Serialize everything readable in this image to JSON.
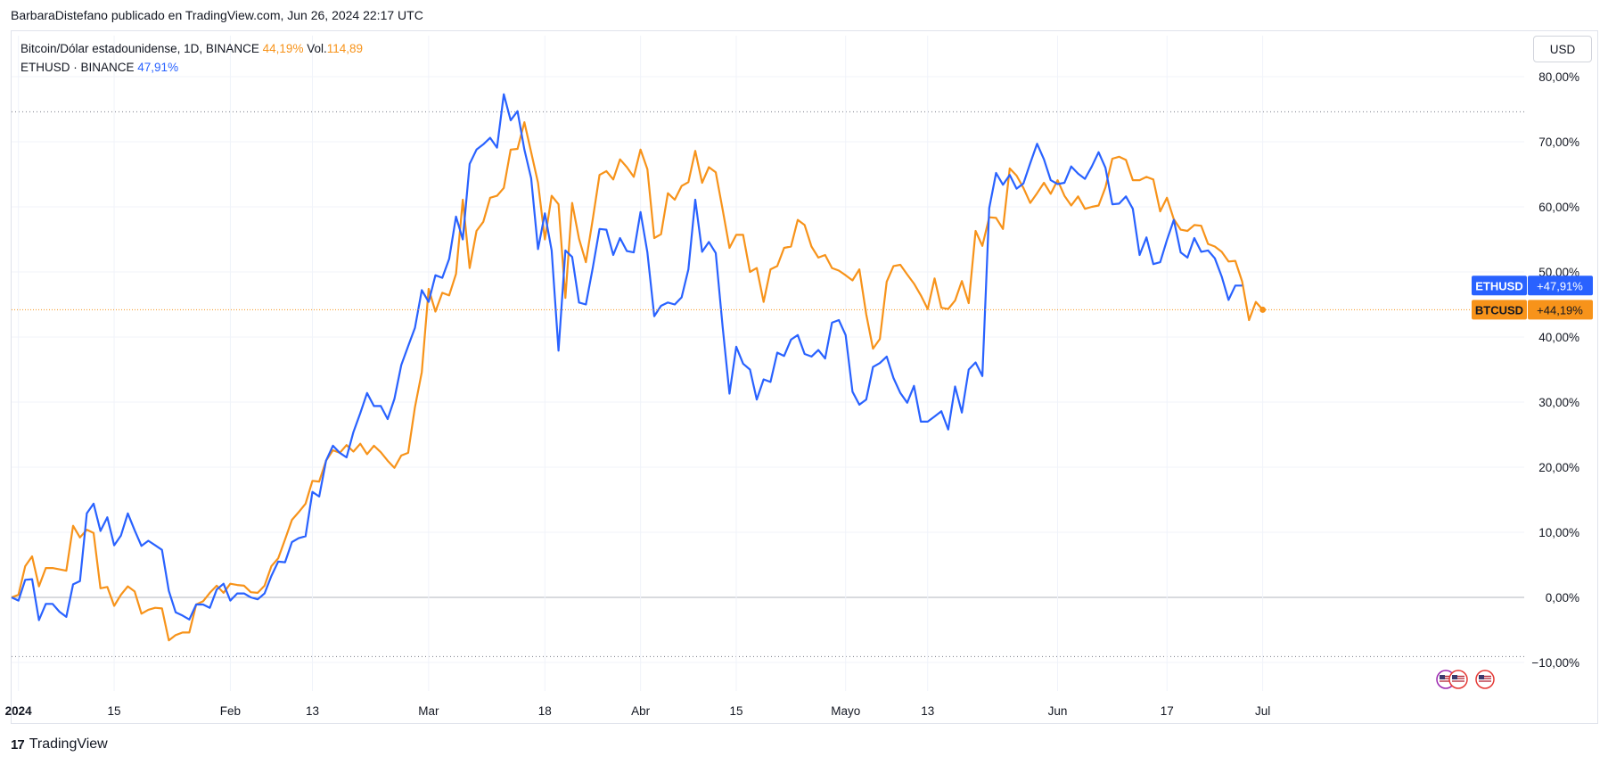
{
  "header": {
    "caption": "BarbaraDistefano publicado en TradingView.com, Jun 26, 2024 22:17 UTC"
  },
  "legend": {
    "row1_name": "Bitcoin/Dólar estadounidense, 1D, BINANCE",
    "row1_change": "44,19%",
    "row1_vol_label": "Vol.",
    "row1_vol_value": "114,89",
    "row2_name": "ETHUSD · BINANCE",
    "row2_change": "47,91%"
  },
  "currency_button": "USD",
  "footer": {
    "brand": "TradingView",
    "logo": "tradingview-logo-icon"
  },
  "colors": {
    "btc": "#f7931a",
    "eth": "#2962ff",
    "grid": "#f0f3fa",
    "zero": "#b2b5be"
  },
  "chart_data": {
    "type": "line",
    "y_unit": "percent",
    "ylim": [
      -12,
      82
    ],
    "y_ticks": [
      80,
      70,
      60,
      50,
      40,
      30,
      20,
      10,
      0,
      -10
    ],
    "y_tick_labels": [
      "80,00%",
      "70,00%",
      "60,00%",
      "50,00%",
      "40,00%",
      "30,00%",
      "20,00%",
      "10,00%",
      "0,00%",
      "−10,00%"
    ],
    "x_range": [
      "2023-12-31",
      "2024-07-06"
    ],
    "x_ticks": [
      {
        "date": "2024-01-01",
        "label": "2024",
        "bold": true
      },
      {
        "date": "2024-01-15",
        "label": "15"
      },
      {
        "date": "2024-02-01",
        "label": "Feb"
      },
      {
        "date": "2024-02-13",
        "label": "13"
      },
      {
        "date": "2024-03-01",
        "label": "Mar"
      },
      {
        "date": "2024-03-18",
        "label": "18"
      },
      {
        "date": "2024-04-01",
        "label": "Abr"
      },
      {
        "date": "2024-04-15",
        "label": "15"
      },
      {
        "date": "2024-05-01",
        "label": "Mayo"
      },
      {
        "date": "2024-05-13",
        "label": "13"
      },
      {
        "date": "2024-06-01",
        "label": "Jun"
      },
      {
        "date": "2024-06-17",
        "label": "17"
      },
      {
        "date": "2024-07-01",
        "label": "Jul"
      }
    ],
    "dashed_lines": [
      74.6,
      -9.1
    ],
    "series": [
      {
        "name": "ETHUSD",
        "badge_label": "ETHUSD",
        "badge_value": "+47,91%",
        "last_value": 47.91,
        "color": "#2962ff",
        "start": "2023-12-31",
        "values": [
          0,
          -0.5,
          2.7,
          2.8,
          -3.5,
          -1,
          -1,
          -2.2,
          -3,
          2,
          2.5,
          12.9,
          14.4,
          10.2,
          12.3,
          8,
          9.5,
          12.9,
          10.3,
          7.9,
          8.7,
          8,
          7.3,
          1,
          -2.3,
          -2.8,
          -3.4,
          -1.1,
          -1.1,
          -1.6,
          1.2,
          2.1,
          -0.5,
          0.6,
          0.6,
          0,
          -0.3,
          0.6,
          3.3,
          5.5,
          5.4,
          8.5,
          9.1,
          9.4,
          16.2,
          15.5,
          21,
          23.3,
          22.2,
          21.5,
          25.4,
          28.3,
          31.4,
          29.4,
          29.4,
          27.4,
          30.5,
          35.7,
          38.6,
          41.4,
          47.2,
          45.4,
          49.5,
          49.1,
          52,
          58.5,
          55,
          66.6,
          68.8,
          69.6,
          70.6,
          69.1,
          77.3,
          73.3,
          74.7,
          68.8,
          64.4,
          53.5,
          59,
          53.3,
          37.9,
          53.3,
          52.3,
          45.3,
          45,
          50.6,
          56.6,
          56.5,
          52.6,
          55.2,
          53.2,
          53,
          59.2,
          53,
          43.2,
          44.8,
          45.3,
          45,
          46.1,
          50.4,
          61.1,
          53.1,
          54.6,
          52.9,
          41.6,
          31.3,
          38.5,
          35.9,
          35,
          30.4,
          33.5,
          33.1,
          37.6,
          37.1,
          39.6,
          40.3,
          37.4,
          37,
          38,
          36.7,
          42.2,
          42.6,
          40.3,
          31.6,
          29.6,
          30.4,
          35.4,
          36,
          37,
          33.7,
          31.4,
          29.9,
          32.5,
          27,
          27,
          27.8,
          28.6,
          25.8,
          32.4,
          28.4,
          35,
          36.1,
          34,
          59.8,
          65.2,
          63.4,
          64.9,
          62.8,
          63.6,
          66.7,
          69.7,
          67.3,
          64.1,
          63.5,
          63.7,
          66.2,
          65.1,
          64.3,
          66.2,
          68.4,
          66,
          60.4,
          60.5,
          61.6,
          59.7,
          52.6,
          55.3,
          51.2,
          51.5,
          54.9,
          58,
          53,
          52.2,
          55.2,
          53.1,
          53.3,
          52.1,
          49.3,
          45.7,
          47.9,
          47.91
        ]
      },
      {
        "name": "BTCUSD",
        "badge_label": "BTCUSD",
        "badge_value": "+44,19%",
        "last_value": 44.19,
        "color": "#f7931a",
        "start": "2023-12-31",
        "values": [
          0,
          0.4,
          4.8,
          6.3,
          1.7,
          4.5,
          4.5,
          4.3,
          4.1,
          11,
          9.2,
          10.4,
          9.9,
          1.4,
          1.6,
          -1.3,
          0.4,
          1.7,
          0.9,
          -2.5,
          -1.9,
          -1.6,
          -1.7,
          -6.6,
          -5.8,
          -5.4,
          -5.4,
          -1.1,
          -0.6,
          0.7,
          1.8,
          0.7,
          2.1,
          1.9,
          1.8,
          0.8,
          0.7,
          1.8,
          4.8,
          6,
          8.9,
          11.9,
          13.1,
          14.4,
          17.9,
          17.8,
          21,
          22.6,
          22.2,
          23.4,
          22.4,
          23.6,
          22,
          23.3,
          22.3,
          21,
          19.9,
          21.8,
          22.2,
          29.2,
          34.6,
          47.4,
          43.9,
          46.8,
          46.4,
          49.7,
          61.1,
          50.6,
          56.3,
          57.7,
          61.4,
          61.7,
          62.9,
          68.8,
          68.9,
          73,
          68.4,
          63.7,
          55,
          61.7,
          60.4,
          46,
          60.6,
          55.1,
          51.5,
          58.1,
          64.9,
          65.5,
          64.2,
          67.3,
          66.1,
          64.6,
          68.8,
          65.8,
          55.2,
          55.8,
          62.1,
          61.1,
          63.2,
          63.8,
          68.6,
          63.7,
          66.1,
          65.3,
          59.6,
          53.7,
          55.7,
          55.7,
          50,
          50.6,
          45.4,
          50.4,
          50.9,
          53.7,
          53.9,
          58,
          57.2,
          53.9,
          52.2,
          52.6,
          50.6,
          50.2,
          49.5,
          48.7,
          50.4,
          43.5,
          38.2,
          39.7,
          48.5,
          50.9,
          51.1,
          49.6,
          48.2,
          46.4,
          44.3,
          49,
          44.5,
          44.3,
          45.6,
          48.6,
          45.2,
          56.3,
          54,
          58.4,
          58.3,
          56.6,
          65.9,
          64.8,
          62.9,
          60.6,
          62.1,
          63.7,
          62,
          64.1,
          61.7,
          60.2,
          61.6,
          59.7,
          60,
          60.2,
          63,
          67.4,
          67.7,
          67.2,
          64.1,
          64.1,
          64.6,
          64.2,
          59.3,
          61.4,
          58.1,
          56.5,
          56.3,
          57.2,
          57.1,
          54.3,
          53.9,
          53.1,
          51.6,
          51.7,
          48.5,
          42.6,
          45.4,
          44.19
        ]
      }
    ]
  }
}
